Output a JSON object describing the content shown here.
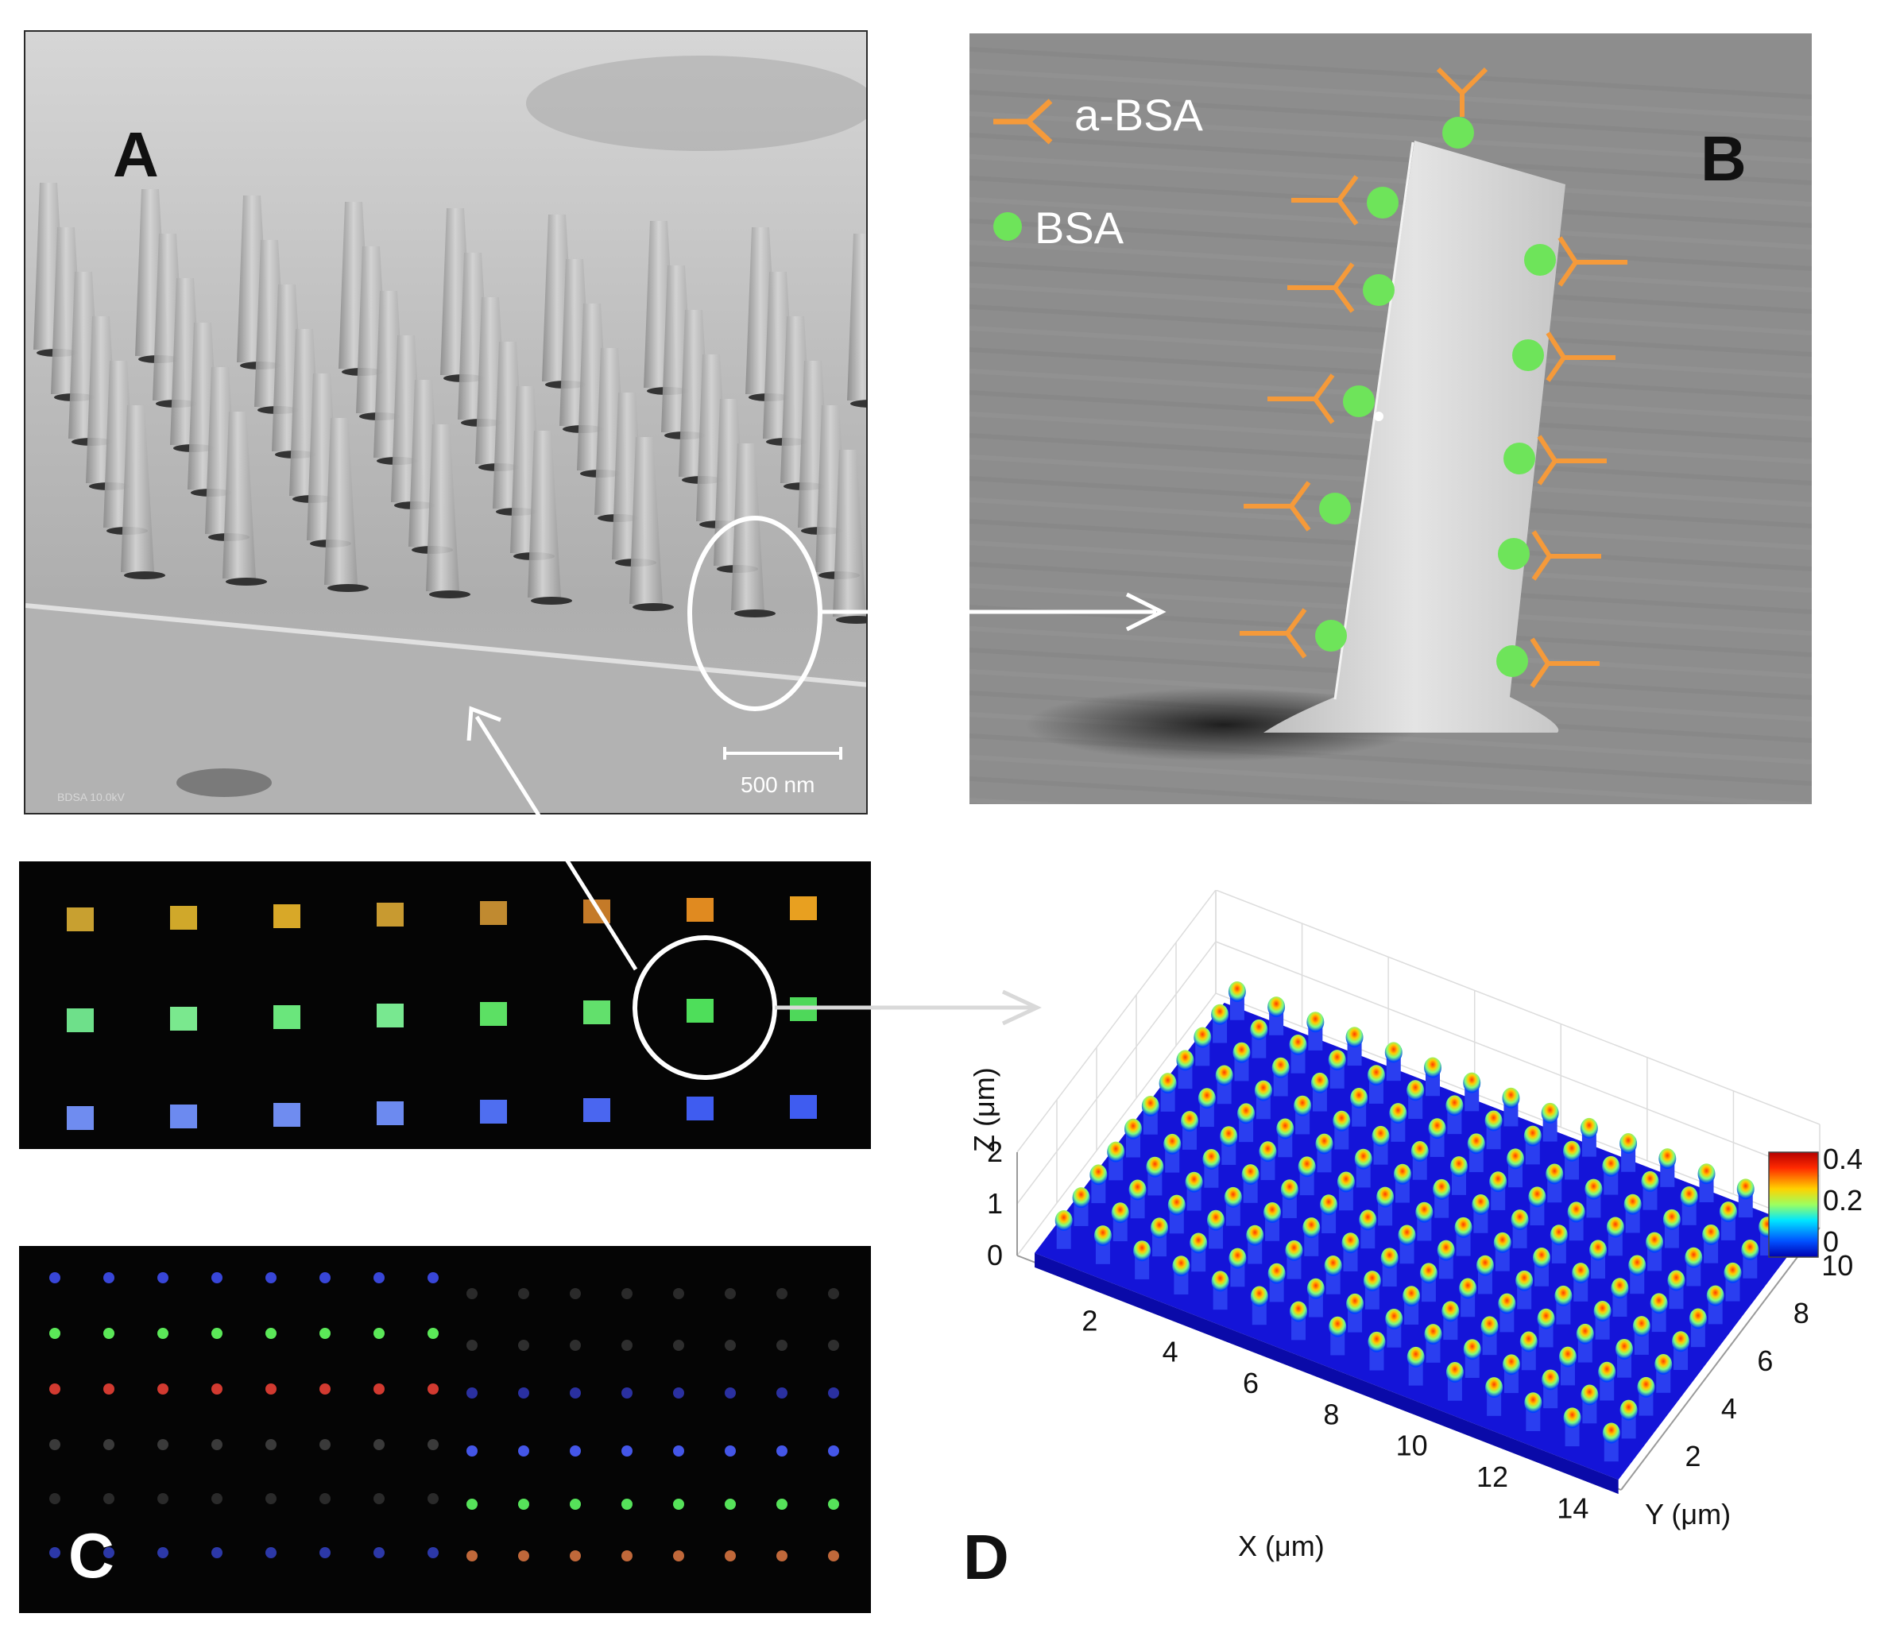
{
  "panels": {
    "a": {
      "letter": "A",
      "scale_bar": "500 nm",
      "footer": "BDSA  10.0kV"
    },
    "b": {
      "letter": "B",
      "legend": [
        {
          "label": "a-BSA",
          "icon": "antibody-icon",
          "color": "#f59a3a"
        },
        {
          "label": "BSA",
          "icon": "green-dot-icon",
          "color": "#6ee45a"
        }
      ]
    },
    "c": {
      "letter": "C"
    },
    "d": {
      "letter": "D"
    }
  },
  "colors": {
    "orange": "#f59a3a",
    "green": "#6ee45a",
    "annotation": "#ffffff"
  },
  "chart_data": {
    "type": "surface3d",
    "title": "",
    "xlabel": "X (μm)",
    "ylabel": "Y (μm)",
    "zlabel": "Z (μm)",
    "x_ticks": [
      "2",
      "4",
      "6",
      "8",
      "10",
      "12",
      "14"
    ],
    "y_ticks": [
      "2",
      "4",
      "6",
      "8",
      "10"
    ],
    "z_ticks": [
      "0",
      "1",
      "2"
    ],
    "xlim": [
      0,
      15
    ],
    "ylim": [
      0,
      11
    ],
    "zlim": [
      0,
      2
    ],
    "colorbar": {
      "ticks": [
        "0.4",
        "0.2",
        "0"
      ],
      "range": [
        0,
        0.4
      ],
      "colormap": "jet"
    },
    "pillar_grid": {
      "nx": 15,
      "ny": 11
    }
  }
}
